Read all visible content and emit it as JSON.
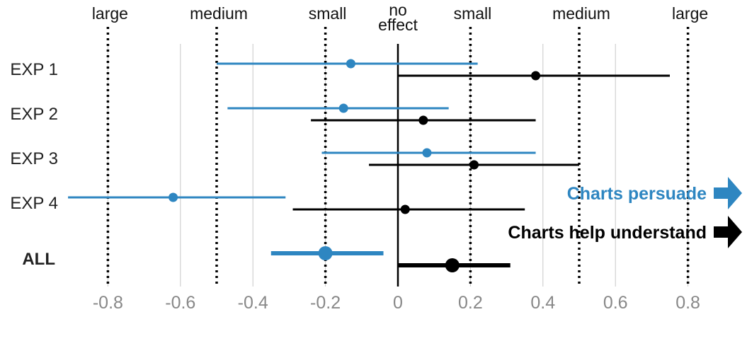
{
  "chart_data": {
    "type": "forest",
    "xlim": [
      -0.9,
      0.9
    ],
    "x_ticks": [
      -0.8,
      -0.6,
      -0.4,
      -0.2,
      0,
      0.2,
      0.4,
      0.6,
      0.8
    ],
    "x_tick_labels": [
      "-0.8",
      "-0.6",
      "-0.4",
      "-0.2",
      "0",
      "0.2",
      "0.4",
      "0.6",
      "0.8"
    ],
    "effect_thresholds": [
      {
        "x": -0.8,
        "label": "large"
      },
      {
        "x": -0.5,
        "label": "medium"
      },
      {
        "x": -0.2,
        "label": "small"
      },
      {
        "x": 0.2,
        "label": "small"
      },
      {
        "x": 0.5,
        "label": "medium"
      },
      {
        "x": 0.8,
        "label": "large"
      }
    ],
    "zero_label": [
      "no",
      "effect"
    ],
    "rows": [
      {
        "label": "EXP 1",
        "bold": false
      },
      {
        "label": "EXP 2",
        "bold": false
      },
      {
        "label": "EXP 3",
        "bold": false
      },
      {
        "label": "EXP 4",
        "bold": false
      },
      {
        "label": "ALL",
        "bold": true
      }
    ],
    "series": [
      {
        "name": "Charts persuade",
        "color": "#2e86c1",
        "points": [
          {
            "row": "EXP 1",
            "estimate": -0.13,
            "ci": [
              -0.5,
              0.22
            ]
          },
          {
            "row": "EXP 2",
            "estimate": -0.15,
            "ci": [
              -0.47,
              0.14
            ]
          },
          {
            "row": "EXP 3",
            "estimate": 0.08,
            "ci": [
              -0.21,
              0.38
            ]
          },
          {
            "row": "EXP 4",
            "estimate": -0.62,
            "ci": [
              -0.91,
              -0.31
            ]
          },
          {
            "row": "ALL",
            "estimate": -0.2,
            "ci": [
              -0.35,
              -0.04
            ]
          }
        ]
      },
      {
        "name": "Charts help understand",
        "color": "#000000",
        "points": [
          {
            "row": "EXP 1",
            "estimate": 0.38,
            "ci": [
              0.0,
              0.75
            ]
          },
          {
            "row": "EXP 2",
            "estimate": 0.07,
            "ci": [
              -0.24,
              0.38
            ]
          },
          {
            "row": "EXP 3",
            "estimate": 0.21,
            "ci": [
              -0.08,
              0.5
            ]
          },
          {
            "row": "EXP 4",
            "estimate": 0.02,
            "ci": [
              -0.29,
              0.35
            ]
          },
          {
            "row": "ALL",
            "estimate": 0.15,
            "ci": [
              0.0,
              0.31
            ]
          }
        ]
      }
    ]
  }
}
